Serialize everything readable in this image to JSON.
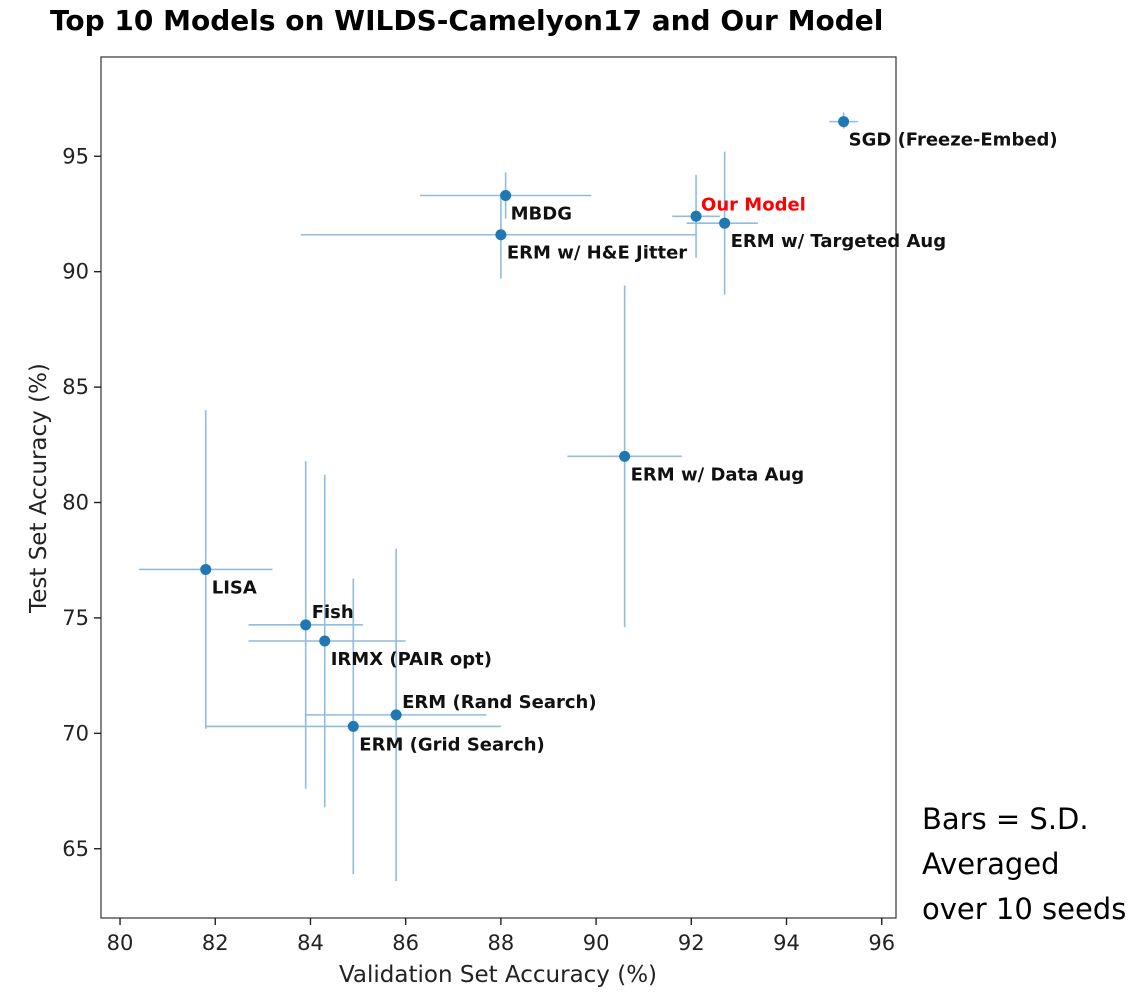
{
  "chart_data": {
    "type": "scatter",
    "title": "Top 10 Models on WILDS-Camelyon17 and Our Model",
    "xlabel": "Validation Set Accuracy (%)",
    "ylabel": "Test Set Accuracy (%)",
    "xlim": [
      79.6,
      96.3
    ],
    "ylim": [
      62,
      99.3
    ],
    "xticks": [
      "80",
      "82",
      "84",
      "86",
      "88",
      "90",
      "92",
      "94",
      "96"
    ],
    "yticks": [
      "65",
      "70",
      "75",
      "80",
      "85",
      "90",
      "95"
    ],
    "grid": false,
    "marker_color": "#1f77b4",
    "errorbar_color": "#8fbcdf",
    "highlight_color": "#ff0000",
    "points": [
      {
        "label": "SGD (Freeze-Embed)",
        "x": 95.2,
        "y": 96.5,
        "xerr": [
          94.9,
          95.5
        ],
        "yerr": [
          96.2,
          96.9
        ],
        "highlight": false
      },
      {
        "label": "Our Model",
        "x": 92.1,
        "y": 92.4,
        "xerr": [
          91.6,
          92.6
        ],
        "yerr": [
          90.6,
          94.2
        ],
        "highlight": true
      },
      {
        "label": "ERM w/ Targeted Aug",
        "x": 92.7,
        "y": 92.1,
        "xerr": [
          91.9,
          93.4
        ],
        "yerr": [
          89.0,
          95.2
        ],
        "highlight": false
      },
      {
        "label": "MBDG",
        "x": 88.1,
        "y": 93.3,
        "xerr": [
          86.3,
          89.9
        ],
        "yerr": [
          92.3,
          94.3
        ],
        "highlight": false
      },
      {
        "label": "ERM w/ H&E Jitter",
        "x": 88.0,
        "y": 91.6,
        "xerr": [
          83.8,
          92.1
        ],
        "yerr": [
          89.7,
          93.4
        ],
        "highlight": false
      },
      {
        "label": "ERM w/ Data Aug",
        "x": 90.6,
        "y": 82.0,
        "xerr": [
          89.4,
          91.8
        ],
        "yerr": [
          74.6,
          89.4
        ],
        "highlight": false
      },
      {
        "label": "LISA",
        "x": 81.8,
        "y": 77.1,
        "xerr": [
          80.4,
          83.2
        ],
        "yerr": [
          70.2,
          84.0
        ],
        "highlight": false
      },
      {
        "label": "Fish",
        "x": 83.9,
        "y": 74.7,
        "xerr": [
          82.7,
          85.1
        ],
        "yerr": [
          67.6,
          81.8
        ],
        "highlight": false
      },
      {
        "label": "IRMX (PAIR opt)",
        "x": 84.3,
        "y": 74.0,
        "xerr": [
          82.7,
          86.0
        ],
        "yerr": [
          66.8,
          81.2
        ],
        "highlight": false
      },
      {
        "label": "ERM (Rand Search)",
        "x": 85.8,
        "y": 70.8,
        "xerr": [
          83.9,
          87.7
        ],
        "yerr": [
          63.6,
          78.0
        ],
        "highlight": false
      },
      {
        "label": "ERM (Grid Search)",
        "x": 84.9,
        "y": 70.3,
        "xerr": [
          81.8,
          88.0
        ],
        "yerr": [
          63.9,
          76.7
        ],
        "highlight": false
      }
    ]
  },
  "annotation": {
    "lines": [
      "Bars = S.D.",
      "Averaged",
      "over 10 seeds"
    ]
  }
}
